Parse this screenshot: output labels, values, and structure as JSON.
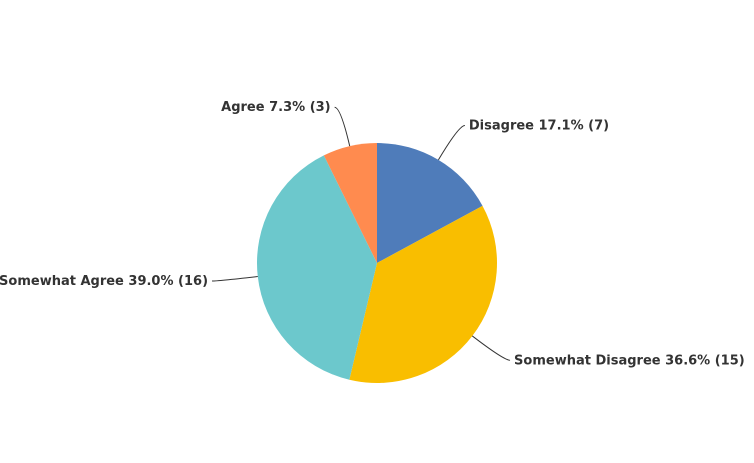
{
  "chart_data": {
    "type": "pie",
    "categories": [
      "Disagree",
      "Somewhat Disagree",
      "Somewhat Agree",
      "Agree"
    ],
    "values": [
      17.1,
      36.6,
      39.0,
      7.3
    ],
    "value_labels": [
      "17.1% (7)",
      "36.6% (15)",
      "39.0% (16)",
      "7.3% (3)"
    ],
    "colors": [
      "#4f7cba",
      "#f9be00",
      "#6cc8cc",
      "#ff8b4f"
    ]
  }
}
